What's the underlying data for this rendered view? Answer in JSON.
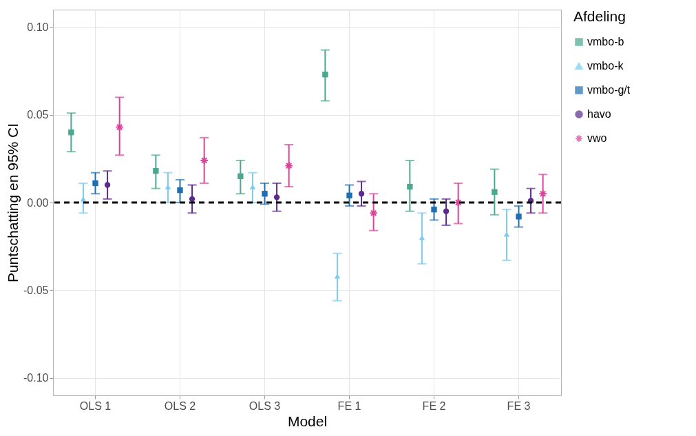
{
  "chart_data": {
    "type": "scatter",
    "xlabel": "Model",
    "ylabel": "Puntschatting en 95% CI",
    "legend_title": "Afdeling",
    "legend": "right",
    "grid": true,
    "categories": [
      "OLS 1",
      "OLS 2",
      "OLS 3",
      "FE 1",
      "FE 2",
      "FE 3"
    ],
    "ylim": [
      -0.11,
      0.11
    ],
    "yticks": [
      {
        "value": -0.1,
        "label": "-0.10"
      },
      {
        "value": -0.05,
        "label": "-0.05"
      },
      {
        "value": 0,
        "label": "0.00"
      },
      {
        "value": 0.05,
        "label": "0.05"
      },
      {
        "value": 0.1,
        "label": "0.10"
      }
    ],
    "ref_lines": [
      {
        "axis": "y",
        "value": 0,
        "color": "#000000",
        "line_style": "dashed"
      }
    ],
    "series": [
      {
        "name": "vmbo-b",
        "color": "#4aa88f",
        "marker": "square",
        "values": [
          0.04,
          0.018,
          0.015,
          0.073,
          0.009,
          0.006
        ],
        "errors": [
          [
            0.029,
            0.051
          ],
          [
            0.008,
            0.027
          ],
          [
            0.005,
            0.024
          ],
          [
            0.058,
            0.087
          ],
          [
            -0.005,
            0.024
          ],
          [
            -0.007,
            0.019
          ]
        ]
      },
      {
        "name": "vmbo-k",
        "color": "#7dcbee",
        "marker": "triangle",
        "values": [
          0.002,
          0.009,
          0.009,
          -0.042,
          -0.02,
          -0.018
        ],
        "errors": [
          [
            -0.006,
            0.011
          ],
          [
            0.0,
            0.017
          ],
          [
            0.0,
            0.017
          ],
          [
            -0.056,
            -0.029
          ],
          [
            -0.035,
            -0.006
          ],
          [
            -0.033,
            -0.004
          ]
        ]
      },
      {
        "name": "vmbo-g/t",
        "color": "#1f6fb0",
        "marker": "square",
        "values": [
          0.011,
          0.007,
          0.005,
          0.004,
          -0.004,
          -0.008
        ],
        "errors": [
          [
            0.005,
            0.017
          ],
          [
            0.0,
            0.013
          ],
          [
            -0.001,
            0.011
          ],
          [
            -0.002,
            0.01
          ],
          [
            -0.01,
            0.002
          ],
          [
            -0.014,
            -0.002
          ]
        ]
      },
      {
        "name": "havo",
        "color": "#5b2a8c",
        "marker": "circle",
        "values": [
          0.01,
          0.002,
          0.003,
          0.005,
          -0.005,
          0.001
        ],
        "errors": [
          [
            0.002,
            0.018
          ],
          [
            -0.006,
            0.01
          ],
          [
            -0.005,
            0.011
          ],
          [
            -0.002,
            0.012
          ],
          [
            -0.013,
            0.002
          ],
          [
            -0.006,
            0.008
          ]
        ]
      },
      {
        "name": "vwo",
        "color": "#d9449a",
        "marker": "cross",
        "values": [
          0.043,
          0.024,
          0.021,
          -0.006,
          0.0,
          0.005
        ],
        "errors": [
          [
            0.027,
            0.06
          ],
          [
            0.011,
            0.037
          ],
          [
            0.009,
            0.033
          ],
          [
            -0.016,
            0.005
          ],
          [
            -0.012,
            0.011
          ],
          [
            -0.006,
            0.016
          ]
        ]
      }
    ]
  }
}
